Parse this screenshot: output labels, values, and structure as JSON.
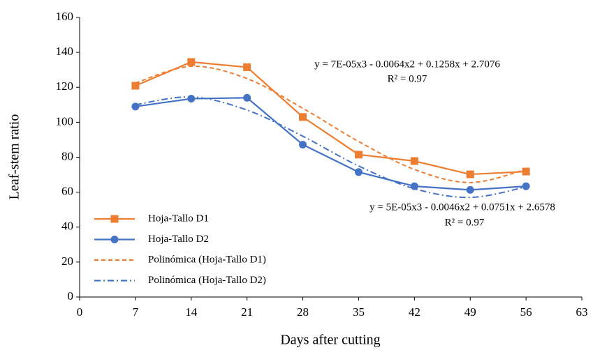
{
  "chart_data": {
    "type": "line",
    "x_label": "Days after cutting",
    "y_label": "Leaf-stem ratio",
    "x": [
      7,
      14,
      21,
      28,
      35,
      42,
      49,
      56
    ],
    "series": [
      {
        "name": "Hoja-Tallo D1",
        "color": "#ed7d31",
        "marker": "square",
        "values": [
          120.9,
          134.5,
          131.5,
          103,
          81.5,
          77.8,
          70.2,
          71.8
        ]
      },
      {
        "name": "Hoja-Tallo D2",
        "color": "#4472c4",
        "marker": "circle",
        "values": [
          109,
          113.5,
          114,
          87.2,
          71.5,
          63.4,
          61.3,
          63.4
        ]
      },
      {
        "name": "Polinómica (Hoja-Tallo D1)",
        "color": "#ed7d31",
        "dash": "6,4",
        "trendline": true,
        "values": [
          122.5,
          132,
          125,
          108,
          89,
          73,
          65.5,
          73
        ]
      },
      {
        "name": "Polinómica (Hoja-Tallo D2)",
        "color": "#4472c4",
        "dash": "9,4,2,4",
        "trendline": true,
        "values": [
          110,
          114.5,
          107,
          92,
          75,
          62,
          57,
          63
        ]
      }
    ],
    "annotations": [
      "y = 7E-05x3 - 0.0064x2 + 0.1258x + 2.7076",
      "R² = 0.97",
      "y = 5E-05x3 - 0.0046x2 + 0.0751x + 2.6578",
      "R² = 0.97"
    ],
    "xlim": [
      0,
      63
    ],
    "xticks": [
      0,
      7,
      14,
      21,
      28,
      35,
      42,
      49,
      56,
      63
    ],
    "ylim": [
      0,
      160
    ],
    "yticks": [
      0,
      20,
      40,
      60,
      80,
      100,
      120,
      140,
      160
    ],
    "grid": false,
    "legend": "lower left"
  }
}
